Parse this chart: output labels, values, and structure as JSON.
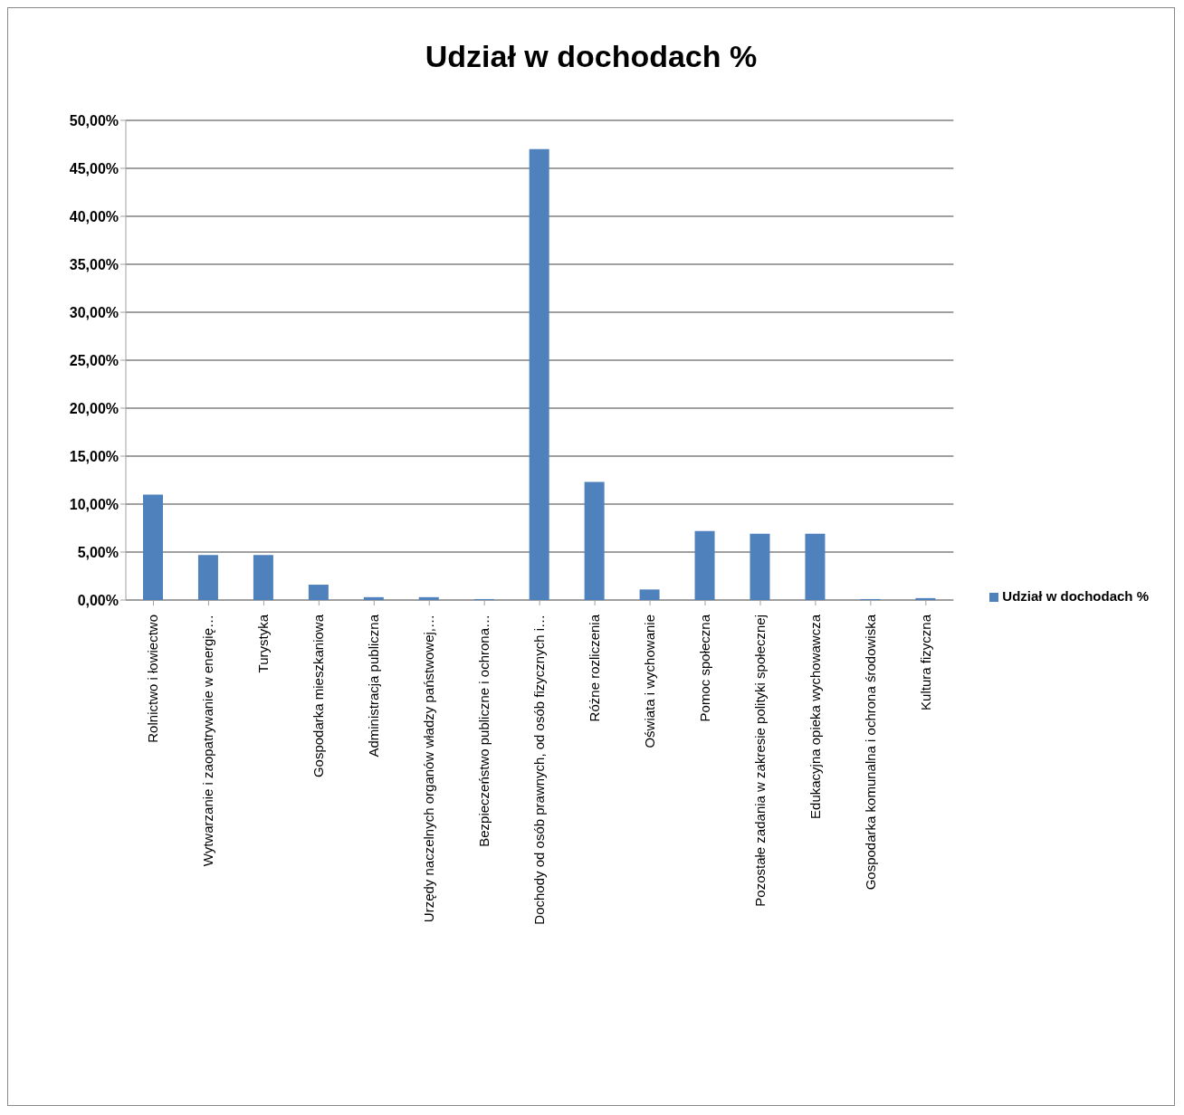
{
  "chart_data": {
    "type": "bar",
    "title": "Udział w dochodach %",
    "categories": [
      "Rolnictwo i łowiectwo",
      "Wytwarzanie i zaopatrywanie w energię…",
      "Turystyka",
      "Gospodarka mieszkaniowa",
      "Administracja publiczna",
      "Urzędy naczelnych organów władzy państwowej,…",
      "Bezpieczeństwo publiczne i ochrona…",
      "Dochody od osób prawnych, od osób fizycznych i…",
      "Różne rozliczenia",
      "Oświata i wychowanie",
      "Pomoc społeczna",
      "Pozostałe zadania w zakresie polityki społecznej",
      "Edukacyjna opieka wychowawcza",
      "Gospodarka komunalna i ochrona środowiska",
      "Kultura fizyczna"
    ],
    "series": [
      {
        "name": "Udział w dochodach %",
        "color": "#4f81bd",
        "values": [
          11,
          4.7,
          4.7,
          1.6,
          0.3,
          0.3,
          0.1,
          47,
          12.3,
          1.1,
          7.2,
          6.9,
          6.9,
          0.1,
          0.2
        ]
      }
    ],
    "ylim": [
      0,
      50
    ],
    "yticks": [
      {
        "value": 0,
        "label": "0,00%"
      },
      {
        "value": 5,
        "label": "5,00%"
      },
      {
        "value": 10,
        "label": "10,00%"
      },
      {
        "value": 15,
        "label": "15,00%"
      },
      {
        "value": 20,
        "label": "20,00%"
      },
      {
        "value": 25,
        "label": "25,00%"
      },
      {
        "value": 30,
        "label": "30,00%"
      },
      {
        "value": 35,
        "label": "35,00%"
      },
      {
        "value": 40,
        "label": "40,00%"
      },
      {
        "value": 45,
        "label": "45,00%"
      },
      {
        "value": 50,
        "label": "50,00%"
      }
    ],
    "grid": "y",
    "legend": "right"
  }
}
